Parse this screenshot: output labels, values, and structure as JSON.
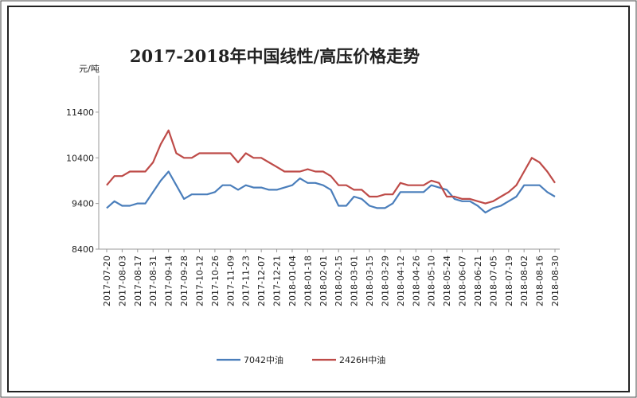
{
  "chart_data": {
    "type": "line",
    "title": "2017-2018年中国线性/高压价格走势",
    "y_label": "元/吨",
    "x": [
      "2017-07-20",
      "2017-07-27",
      "2017-08-03",
      "2017-08-10",
      "2017-08-17",
      "2017-08-24",
      "2017-08-31",
      "2017-09-07",
      "2017-09-14",
      "2017-09-21",
      "2017-09-28",
      "2017-10-05",
      "2017-10-12",
      "2017-10-19",
      "2017-10-26",
      "2017-11-02",
      "2017-11-09",
      "2017-11-16",
      "2017-11-23",
      "2017-11-30",
      "2017-12-07",
      "2017-12-14",
      "2017-12-21",
      "2017-12-28",
      "2018-01-04",
      "2018-01-11",
      "2018-01-18",
      "2018-01-25",
      "2018-02-01",
      "2018-02-08",
      "2018-02-15",
      "2018-02-22",
      "2018-03-01",
      "2018-03-08",
      "2018-03-15",
      "2018-03-22",
      "2018-03-29",
      "2018-04-05",
      "2018-04-12",
      "2018-04-19",
      "2018-04-26",
      "2018-05-03",
      "2018-05-10",
      "2018-05-17",
      "2018-05-24",
      "2018-05-31",
      "2018-06-07",
      "2018-06-14",
      "2018-06-21",
      "2018-06-28",
      "2018-07-05",
      "2018-07-12",
      "2018-07-19",
      "2018-07-26",
      "2018-08-02",
      "2018-08-09",
      "2018-08-16",
      "2018-08-23",
      "2018-08-30"
    ],
    "series": [
      {
        "name": "7042中油",
        "color": "#4a7ebb",
        "values": [
          9300,
          9450,
          9350,
          9350,
          9400,
          9400,
          9650,
          9900,
          10100,
          9800,
          9500,
          9600,
          9600,
          9600,
          9650,
          9800,
          9800,
          9700,
          9800,
          9750,
          9750,
          9700,
          9700,
          9750,
          9800,
          9950,
          9850,
          9850,
          9800,
          9700,
          9350,
          9350,
          9550,
          9500,
          9350,
          9300,
          9300,
          9400,
          9650,
          9650,
          9650,
          9650,
          9800,
          9750,
          9700,
          9500,
          9450,
          9450,
          9350,
          9200,
          9300,
          9350,
          9450,
          9550,
          9800,
          9800,
          9800,
          9650,
          9550
        ]
      },
      {
        "name": "2426H中油",
        "color": "#be4b48",
        "values": [
          9800,
          10000,
          10000,
          10100,
          10100,
          10100,
          10300,
          10700,
          11000,
          10500,
          10400,
          10400,
          10500,
          10500,
          10500,
          10500,
          10500,
          10300,
          10500,
          10400,
          10400,
          10300,
          10200,
          10100,
          10100,
          10100,
          10150,
          10100,
          10100,
          10000,
          9800,
          9800,
          9700,
          9700,
          9550,
          9550,
          9600,
          9600,
          9850,
          9800,
          9800,
          9800,
          9900,
          9850,
          9550,
          9550,
          9500,
          9500,
          9450,
          9400,
          9450,
          9550,
          9650,
          9800,
          10100,
          10400,
          10300,
          10100,
          9850
        ]
      }
    ],
    "xlim": [
      "2017-07-20",
      "2018-08-30"
    ],
    "xticks": [
      "2017-07-20",
      "2017-08-03",
      "2017-08-17",
      "2017-08-31",
      "2017-09-14",
      "2017-09-28",
      "2017-10-12",
      "2017-10-26",
      "2017-11-09",
      "2017-11-23",
      "2017-12-07",
      "2017-12-21",
      "2018-01-04",
      "2018-01-18",
      "2018-02-01",
      "2018-02-15",
      "2018-03-01",
      "2018-03-15",
      "2018-03-29",
      "2018-04-12",
      "2018-04-26",
      "2018-05-10",
      "2018-05-24",
      "2018-06-07",
      "2018-06-21",
      "2018-07-05",
      "2018-07-19",
      "2018-08-02",
      "2018-08-16",
      "2018-08-30"
    ],
    "ylim": [
      8400,
      12200
    ],
    "yticks": [
      8400,
      9400,
      10400,
      11400
    ],
    "legend": "bottom"
  }
}
